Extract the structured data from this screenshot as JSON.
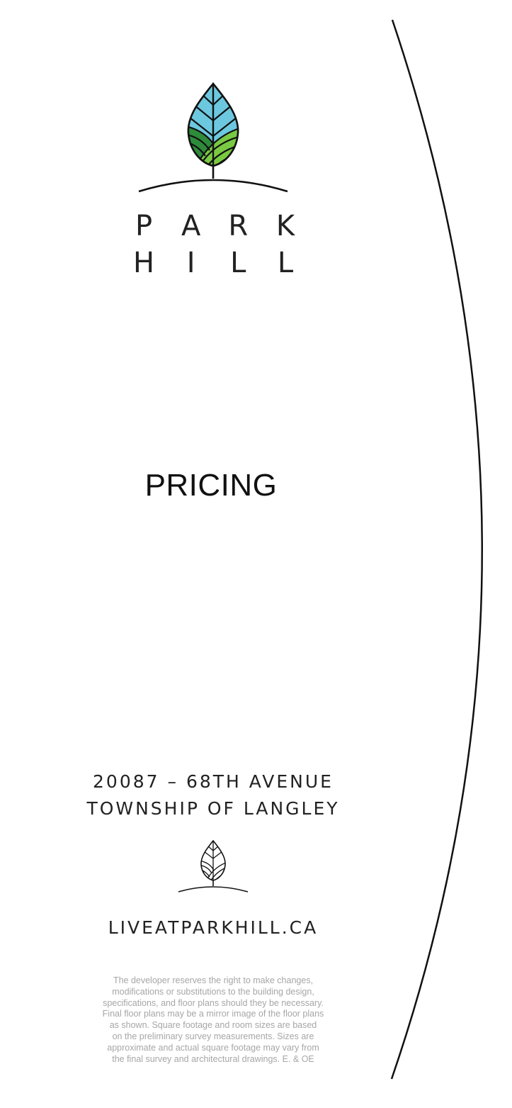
{
  "brand": {
    "name_line1": [
      "P",
      "A",
      "R",
      "K"
    ],
    "name_line2": [
      "H",
      "I",
      "L",
      "L"
    ]
  },
  "colors": {
    "leaf_sky": "#6cc8df",
    "leaf_field_dark": "#2e8b3a",
    "leaf_field_light": "#7ac943",
    "ink": "#111111",
    "disclaimer_gray": "#a6a6a6"
  },
  "icons": {
    "main_logo": "tree-leaf-logo-icon",
    "small_logo": "tree-leaf-outline-icon"
  },
  "heading": "PRICING",
  "address": {
    "line1": "20087 – 68TH AVENUE",
    "line2": "TOWNSHIP OF LANGLEY"
  },
  "website": "LIVEATPARKHILL.CA",
  "disclaimer_lines": [
    "The developer reserves the right to make changes,",
    "modifications or substitutions to the building design,",
    "specifications, and floor plans should they be necessary.",
    "Final floor plans may be a mirror image of the floor plans",
    "as shown. Square footage and room sizes are based",
    "on the preliminary survey measurements. Sizes are",
    "approximate and actual square footage may vary from",
    "the final survey and architectural drawings. E. & OE"
  ]
}
